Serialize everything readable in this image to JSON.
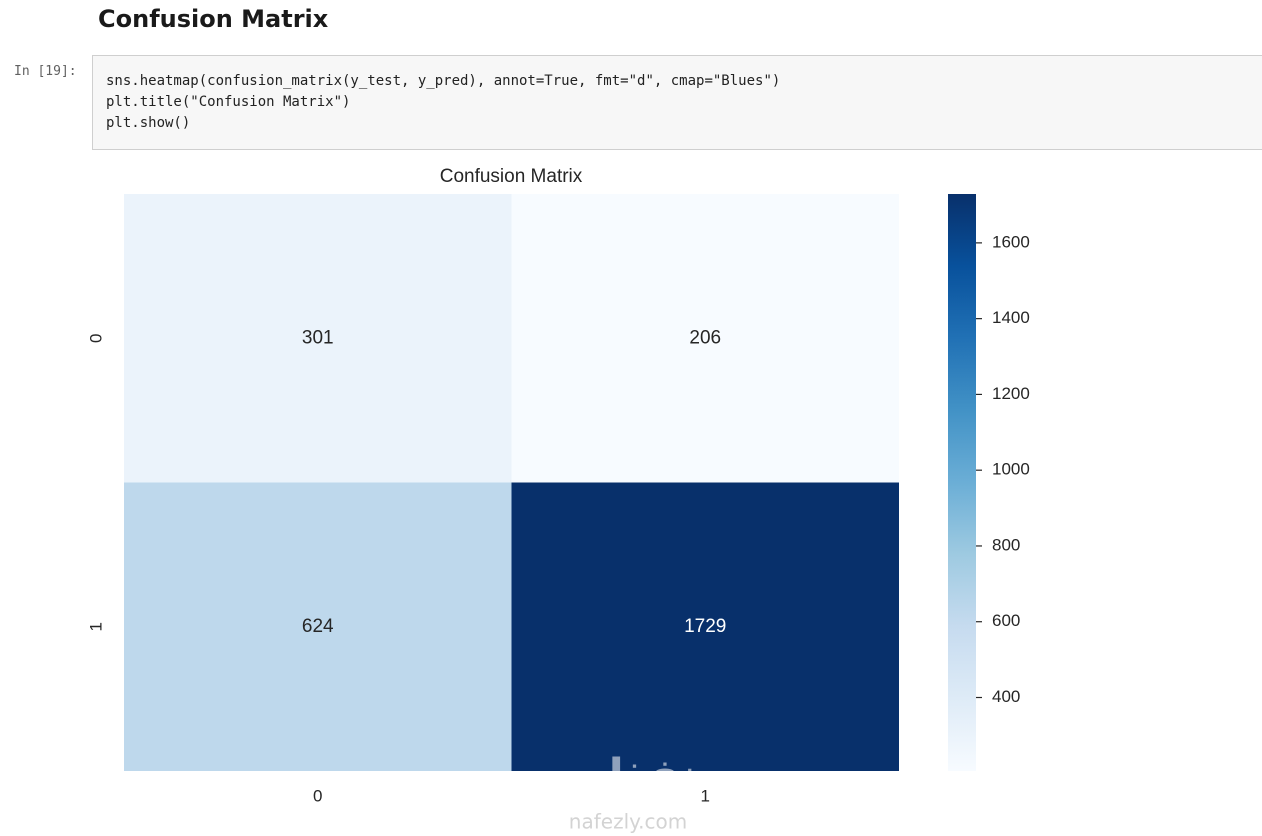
{
  "heading": "Confusion Matrix",
  "cell": {
    "prompt": "In [19]:",
    "code": [
      "sns.heatmap(confusion_matrix(y_test, y_pred), annot=True, fmt=\"d\", cmap=\"Blues\")",
      "plt.title(\"Confusion Matrix\")",
      "plt.show()"
    ]
  },
  "chart_data": {
    "type": "heatmap",
    "title": "Confusion Matrix",
    "x_categories": [
      "0",
      "1"
    ],
    "y_categories": [
      "0",
      "1"
    ],
    "values": [
      [
        301,
        206
      ],
      [
        624,
        1729
      ]
    ],
    "colorbar_lim": [
      206,
      1729
    ],
    "colorbar_ticks": [
      400,
      600,
      800,
      1000,
      1200,
      1400,
      1600
    ],
    "colorscale": [
      "#f7fbff",
      "#deebf7",
      "#c6dbef",
      "#9ecae1",
      "#6baed6",
      "#4292c6",
      "#2171b5",
      "#08519c",
      "#08306b"
    ]
  },
  "watermark": {
    "arabic": "نفذلي",
    "latin": "nafezly.com"
  }
}
